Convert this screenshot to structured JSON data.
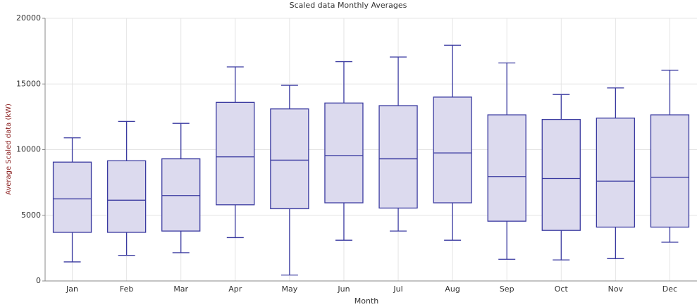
{
  "chart_data": {
    "type": "box",
    "title": "Scaled data Monthly Averages",
    "x_label": "Month",
    "y_label": "Average Scaled data (kW)",
    "categories": [
      "Jan",
      "Feb",
      "Mar",
      "Apr",
      "May",
      "Jun",
      "Jul",
      "Aug",
      "Sep",
      "Oct",
      "Nov",
      "Dec"
    ],
    "low": [
      1450,
      1950,
      2150,
      3300,
      450,
      3100,
      3800,
      3100,
      1650,
      1600,
      1700,
      2950
    ],
    "q1": [
      3700,
      3700,
      3800,
      5800,
      5500,
      5950,
      5550,
      5950,
      4550,
      3850,
      4100,
      4100
    ],
    "median": [
      6250,
      6150,
      6500,
      9450,
      9200,
      9550,
      9300,
      9750,
      7950,
      7800,
      7600,
      7900
    ],
    "q3": [
      9050,
      9150,
      9300,
      13600,
      13100,
      13550,
      13350,
      14000,
      12650,
      12300,
      12400,
      12650
    ],
    "high": [
      10900,
      12150,
      12000,
      16300,
      14900,
      16700,
      17050,
      17950,
      16600,
      14200,
      14700,
      16050
    ],
    "color": "#3a3aa0",
    "fill": "#dcdaee",
    "ylim": [
      0,
      20000
    ],
    "yticks": [
      0,
      5000,
      10000,
      15000,
      20000
    ],
    "grid": true
  }
}
